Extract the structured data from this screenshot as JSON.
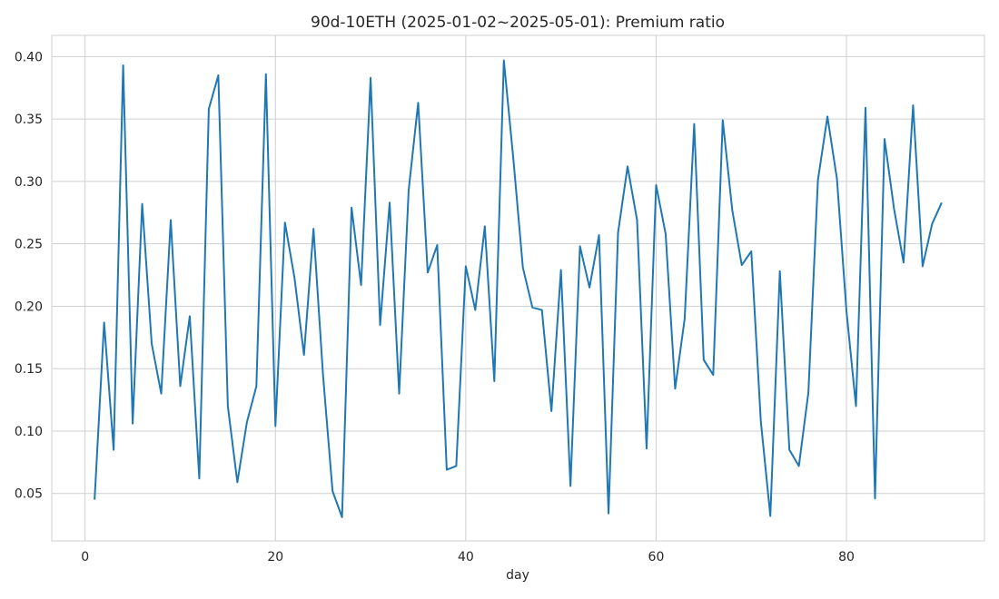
{
  "chart_data": {
    "type": "line",
    "title": "90d-10ETH (2025-01-02~2025-05-01): Premium ratio",
    "xlabel": "day",
    "ylabel": "",
    "xlim": [
      -3.5,
      94.5
    ],
    "ylim": [
      0.012,
      0.417
    ],
    "xticks": [
      0,
      20,
      40,
      60,
      80
    ],
    "yticks": [
      0.05,
      0.1,
      0.15,
      0.2,
      0.25,
      0.3,
      0.35,
      0.4
    ],
    "grid": true,
    "series": [
      {
        "color": "#1f77b4",
        "x": [
          1,
          2,
          3,
          4,
          5,
          6,
          7,
          8,
          9,
          10,
          11,
          12,
          13,
          14,
          15,
          16,
          17,
          18,
          19,
          20,
          21,
          22,
          23,
          24,
          25,
          26,
          27,
          28,
          29,
          30,
          31,
          32,
          33,
          34,
          35,
          36,
          37,
          38,
          39,
          40,
          41,
          42,
          43,
          44,
          45,
          46,
          47,
          48,
          49,
          50,
          51,
          52,
          53,
          54,
          55,
          56,
          57,
          58,
          59,
          60,
          61,
          62,
          63,
          64,
          65,
          66,
          67,
          68,
          69,
          70,
          71,
          72,
          73,
          74,
          75,
          76,
          77,
          78,
          79,
          80,
          81,
          82,
          83,
          84,
          85,
          86,
          87,
          88,
          89,
          90
        ],
        "y": [
          0.045,
          0.187,
          0.085,
          0.393,
          0.106,
          0.282,
          0.17,
          0.13,
          0.269,
          0.136,
          0.192,
          0.062,
          0.358,
          0.385,
          0.12,
          0.059,
          0.107,
          0.136,
          0.386,
          0.104,
          0.267,
          0.223,
          0.161,
          0.262,
          0.145,
          0.052,
          0.031,
          0.279,
          0.217,
          0.383,
          0.185,
          0.283,
          0.13,
          0.293,
          0.363,
          0.227,
          0.249,
          0.069,
          0.072,
          0.232,
          0.197,
          0.264,
          0.14,
          0.397,
          0.318,
          0.231,
          0.199,
          0.197,
          0.116,
          0.229,
          0.056,
          0.248,
          0.215,
          0.257,
          0.034,
          0.259,
          0.312,
          0.269,
          0.086,
          0.297,
          0.258,
          0.134,
          0.19,
          0.346,
          0.157,
          0.145,
          0.349,
          0.277,
          0.233,
          0.244,
          0.108,
          0.032,
          0.228,
          0.085,
          0.072,
          0.131,
          0.301,
          0.352,
          0.302,
          0.196,
          0.12,
          0.359,
          0.046,
          0.334,
          0.278,
          0.235,
          0.361,
          0.232,
          0.266,
          0.283
        ]
      }
    ]
  }
}
